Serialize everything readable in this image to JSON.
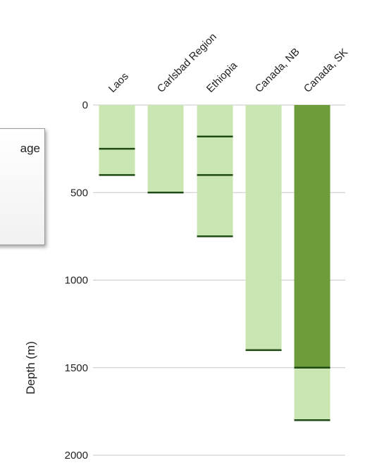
{
  "legend": {
    "partial_text": "age"
  },
  "chart_data": {
    "type": "bar",
    "categories": [
      "Laos",
      "Carlsbad Region",
      "Ethiopia",
      "Canada, NB",
      "Canada, SK"
    ],
    "ylabel": "Depth (m)",
    "ylim": [
      0,
      2000
    ],
    "yticks": [
      0,
      500,
      1000,
      1500,
      2000
    ],
    "grid": true,
    "inverted": true,
    "colors": {
      "light": "#c9e5b1",
      "dark": "#6e9c3a",
      "marker": "#1f4a16",
      "grid": "#c8c8c8"
    },
    "bars": [
      {
        "category": "Laos",
        "segments": [
          {
            "from": 0,
            "to": 400,
            "shade": "light"
          }
        ],
        "markers": [
          250,
          400
        ]
      },
      {
        "category": "Carlsbad Region",
        "segments": [
          {
            "from": 0,
            "to": 500,
            "shade": "light"
          }
        ],
        "markers": [
          500
        ]
      },
      {
        "category": "Ethiopia",
        "segments": [
          {
            "from": 0,
            "to": 750,
            "shade": "light"
          }
        ],
        "markers": [
          180,
          400,
          750
        ]
      },
      {
        "category": "Canada, NB",
        "segments": [
          {
            "from": 0,
            "to": 1400,
            "shade": "light"
          }
        ],
        "markers": [
          1400
        ]
      },
      {
        "category": "Canada, SK",
        "segments": [
          {
            "from": 0,
            "to": 1500,
            "shade": "dark"
          },
          {
            "from": 1500,
            "to": 1800,
            "shade": "light"
          }
        ],
        "markers": [
          1500,
          1800
        ]
      }
    ]
  }
}
